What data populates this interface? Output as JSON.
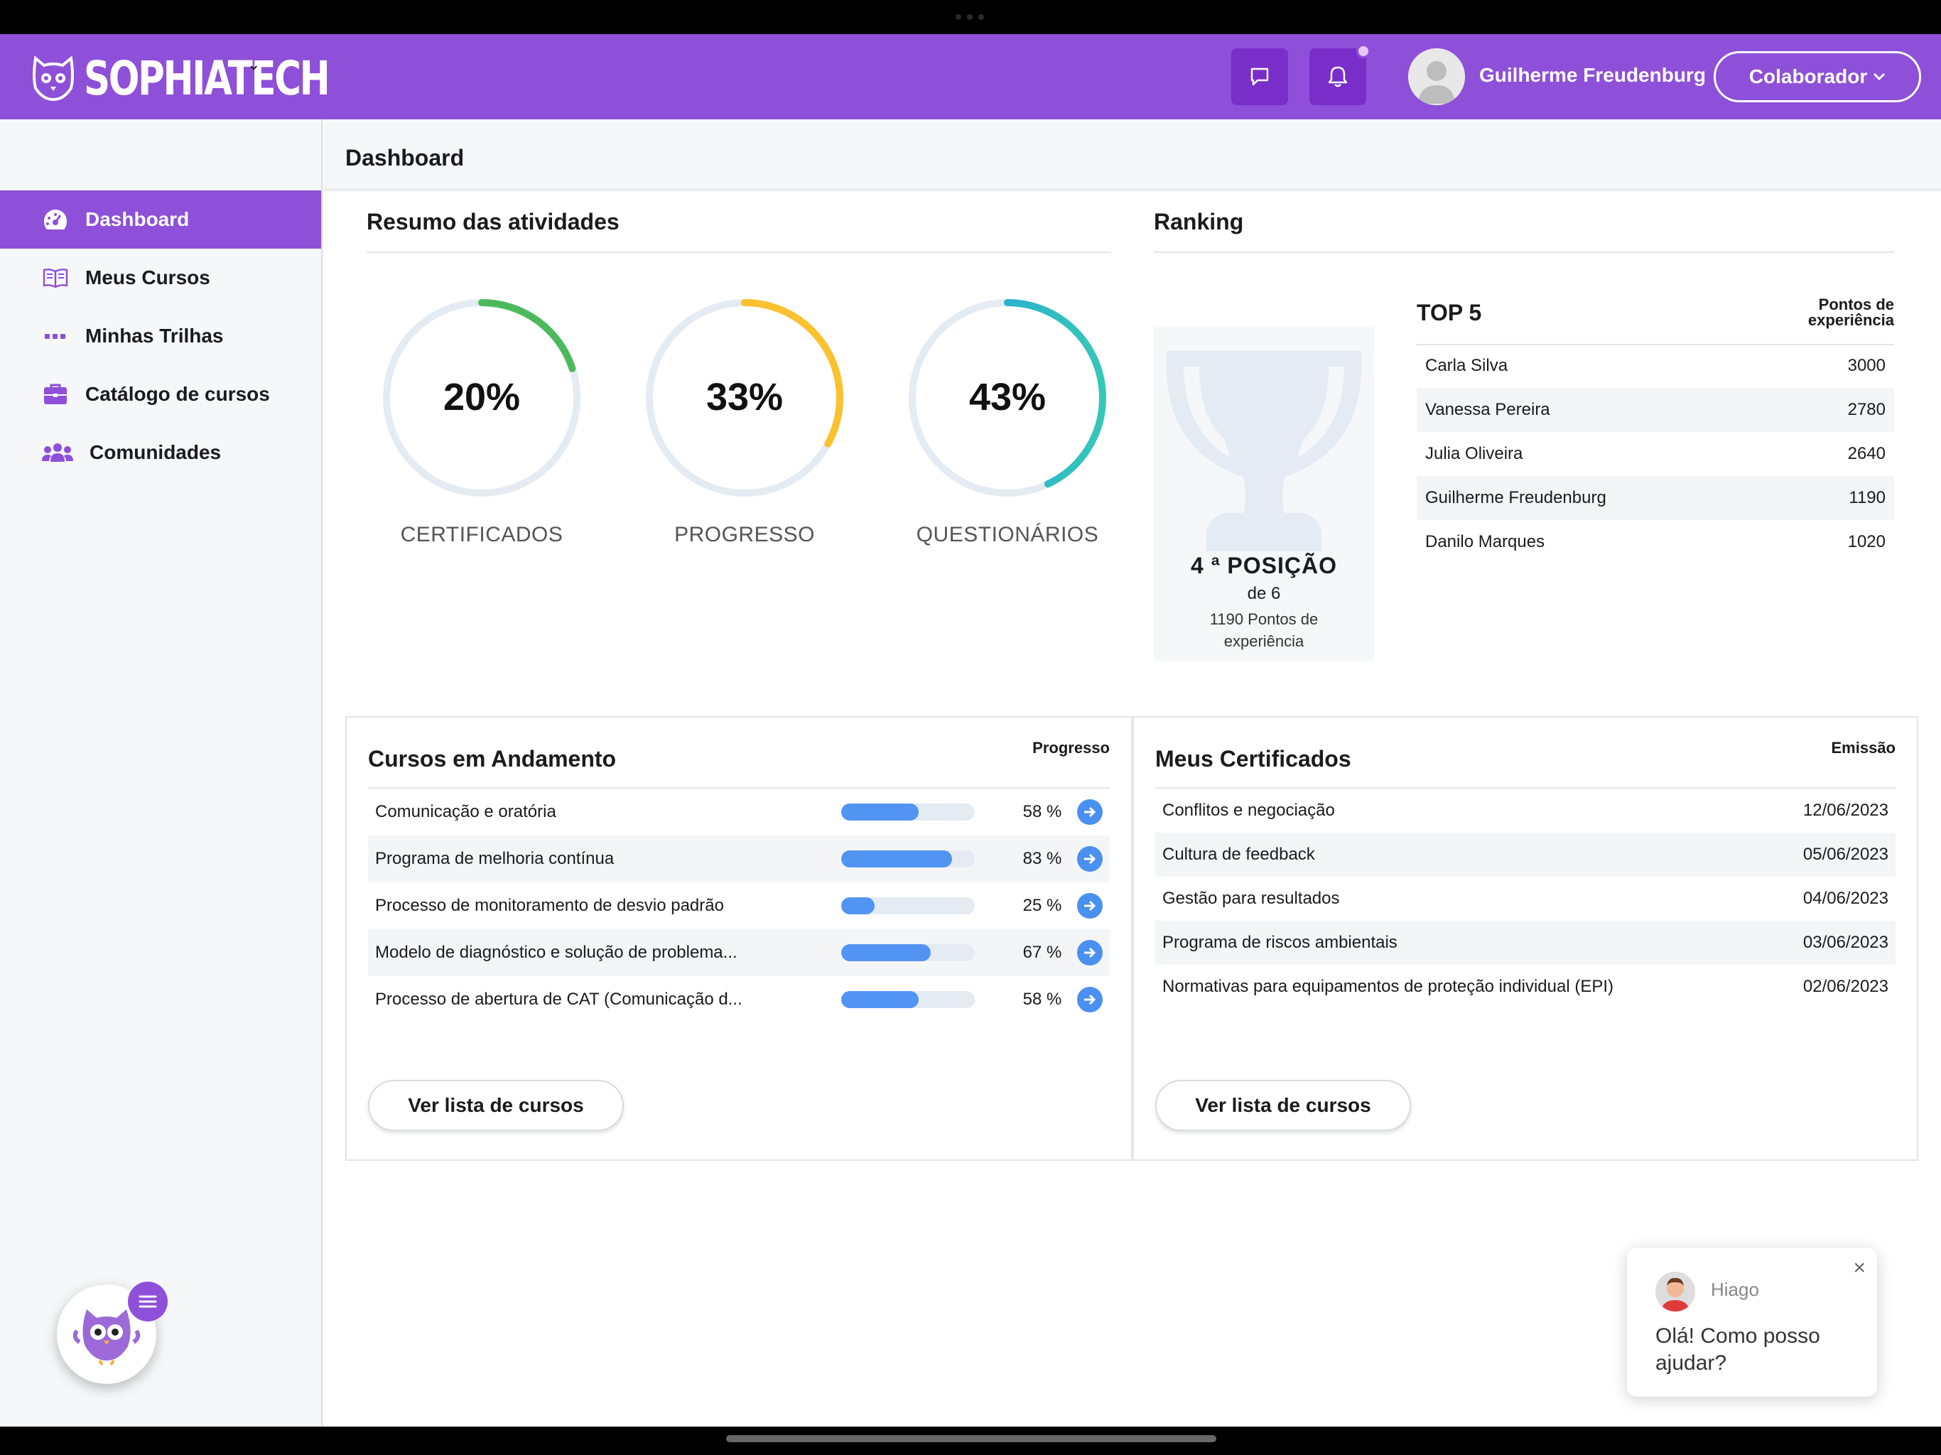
{
  "app": {
    "logo_text": "SOPHIATECH"
  },
  "header": {
    "user_name": "Guilherme Freudenburg",
    "role_label": "Colaborador"
  },
  "sidebar": {
    "items": [
      {
        "label": "Dashboard",
        "icon": "dashboard-gauge-icon",
        "active": true
      },
      {
        "label": "Meus Cursos",
        "icon": "book-icon"
      },
      {
        "label": "Minhas Trilhas",
        "icon": "dots-icon"
      },
      {
        "label": "Catálogo de cursos",
        "icon": "briefcase-icon"
      },
      {
        "label": "Comunidades",
        "icon": "users-icon"
      }
    ]
  },
  "page": {
    "title": "Dashboard"
  },
  "summary": {
    "title": "Resumo das atividades",
    "rings": [
      {
        "value": "20%",
        "label": "CERTIFICADOS",
        "fraction": 0.2,
        "color": "#4cba5c"
      },
      {
        "value": "33%",
        "label": "PROGRESSO",
        "fraction": 0.33,
        "color": "#f9c22e"
      },
      {
        "value": "43%",
        "label": "QUESTIONÁRIOS",
        "fraction": 0.43,
        "color": "#1f9de0"
      }
    ]
  },
  "ranking": {
    "title": "Ranking",
    "position": "4 ª POSIÇÃO",
    "of": "de 6",
    "points": "1190 Pontos de experiência",
    "top_title": "TOP 5",
    "points_header": "Pontos de experiência",
    "rows": [
      {
        "name": "Carla Silva",
        "points": "3000"
      },
      {
        "name": "Vanessa Pereira",
        "points": "2780"
      },
      {
        "name": "Julia Oliveira",
        "points": "2640"
      },
      {
        "name": "Guilherme Freudenburg",
        "points": "1190"
      },
      {
        "name": "Danilo Marques",
        "points": "1020"
      }
    ]
  },
  "courses": {
    "title": "Cursos em Andamento",
    "col_header": "Progresso",
    "rows": [
      {
        "name": "Comunicação e oratória",
        "pct": "58 %",
        "fraction": 0.58
      },
      {
        "name": "Programa de melhoria contínua",
        "pct": "83 %",
        "fraction": 0.83
      },
      {
        "name": "Processo de monitoramento de desvio padrão",
        "pct": "25 %",
        "fraction": 0.25
      },
      {
        "name": "Modelo de diagnóstico e solução de problema...",
        "pct": "67 %",
        "fraction": 0.67
      },
      {
        "name": "Processo de abertura de CAT (Comunicação d...",
        "pct": "58 %",
        "fraction": 0.58
      }
    ],
    "button": "Ver lista de cursos"
  },
  "certificates": {
    "title": "Meus Certificados",
    "col_header": "Emissão",
    "rows": [
      {
        "name": "Conflitos e negociação",
        "date": "12/06/2023"
      },
      {
        "name": "Cultura de feedback",
        "date": "05/06/2023"
      },
      {
        "name": "Gestão para resultados",
        "date": "04/06/2023"
      },
      {
        "name": "Programa de riscos ambientais",
        "date": "03/06/2023"
      },
      {
        "name": "Normativas para equipamentos de proteção individual (EPI)",
        "date": "02/06/2023"
      }
    ],
    "button": "Ver lista de cursos"
  },
  "chat": {
    "agent": "Hiago",
    "message": "Olá! Como posso ajudar?"
  }
}
